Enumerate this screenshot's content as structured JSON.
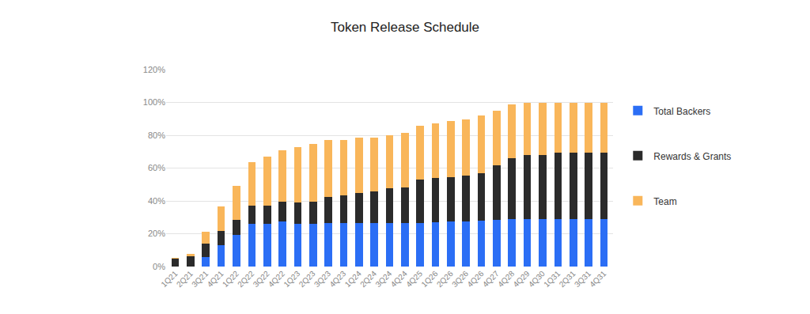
{
  "chart_data": {
    "type": "bar",
    "title": "Token Release Schedule",
    "stacked": true,
    "grid": true,
    "legend": "right",
    "categories": [
      "1Q21",
      "2Q21",
      "3Q21",
      "4Q21",
      "1Q22",
      "2Q22",
      "3Q22",
      "4Q22",
      "1Q23",
      "2Q23",
      "3Q23",
      "4Q23",
      "1Q24",
      "2Q24",
      "3Q24",
      "4Q24",
      "4Q25",
      "1Q26",
      "2Q26",
      "3Q26",
      "4Q26",
      "4Q27",
      "4Q28",
      "4Q29",
      "4Q30",
      "1Q31",
      "2Q31",
      "3Q31",
      "4Q31"
    ],
    "series": [
      {
        "name": "Total Backers",
        "color": "#2b6ef5",
        "values": [
          0,
          0,
          6,
          13,
          19.5,
          26,
          26,
          27.5,
          26,
          26,
          26.5,
          26.5,
          26.5,
          26.5,
          26.5,
          26.5,
          26.5,
          27,
          27.5,
          27.5,
          28,
          28.5,
          29,
          29,
          29,
          29,
          29,
          29,
          29
        ]
      },
      {
        "name": "Rewards & Grants",
        "color": "#2b2b2b",
        "values": [
          5,
          6.5,
          8,
          8.5,
          9,
          11,
          11,
          12,
          13,
          13.5,
          16,
          17,
          18.5,
          19.5,
          21,
          21.5,
          26.5,
          27,
          27,
          28,
          29,
          33,
          37,
          39,
          39,
          40.5,
          40.5,
          40.5,
          40.5
        ]
      },
      {
        "name": "Team",
        "color": "#f9b65a",
        "values": [
          0.5,
          1,
          7,
          15,
          20.5,
          26.5,
          30,
          31.5,
          34,
          35,
          34.5,
          33.5,
          33.5,
          32.5,
          32.5,
          33.5,
          33,
          33,
          34,
          34,
          35,
          33.5,
          33,
          32,
          32,
          30.5,
          30.5,
          30.5,
          30.5
        ]
      }
    ],
    "ylim": [
      0,
      120
    ],
    "yticks": [
      {
        "value": 0,
        "label": "0%"
      },
      {
        "value": 20,
        "label": "20%"
      },
      {
        "value": 40,
        "label": "40%"
      },
      {
        "value": 60,
        "label": "60%"
      },
      {
        "value": 80,
        "label": "80%"
      },
      {
        "value": 100,
        "label": "100%"
      },
      {
        "value": 120,
        "label": "120%"
      }
    ]
  }
}
